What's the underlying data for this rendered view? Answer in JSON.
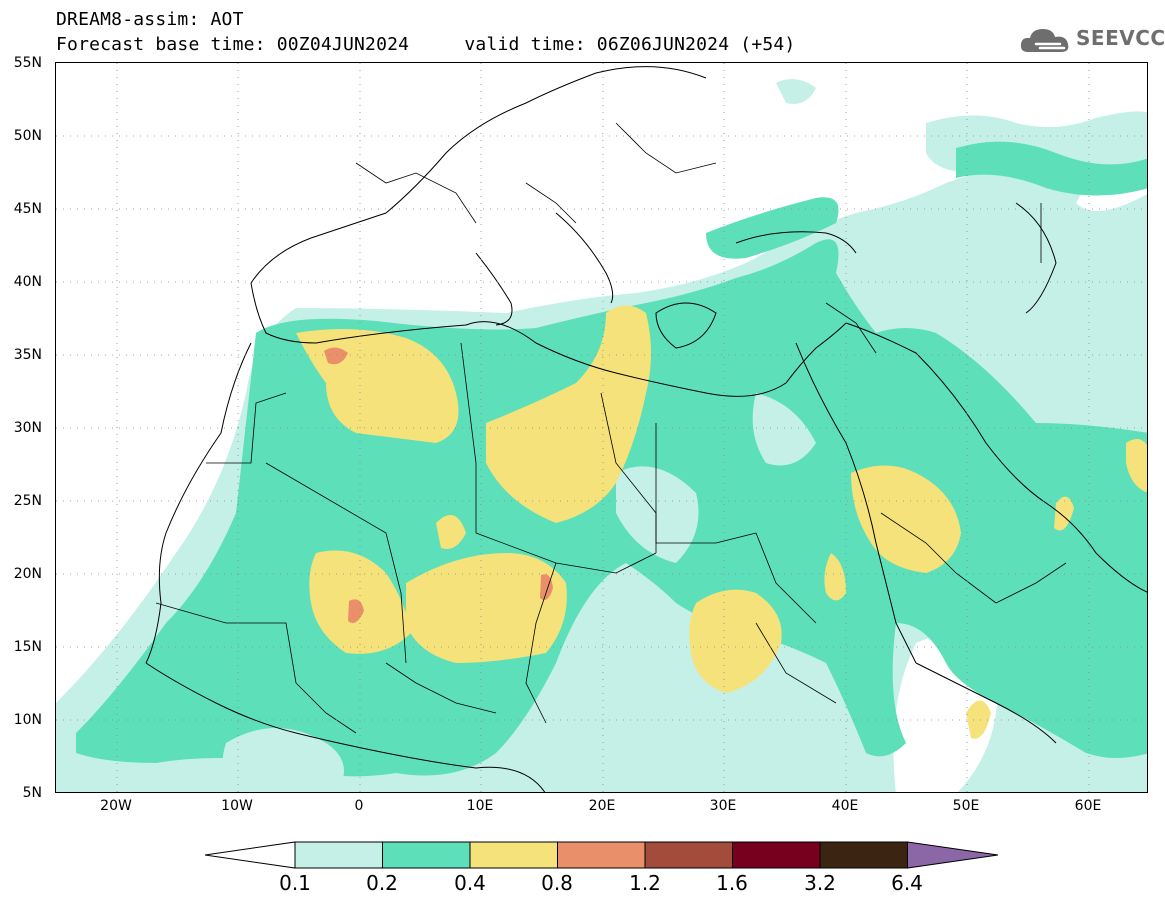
{
  "title": {
    "line1": "DREAM8-assim: AOT",
    "line2": "Forecast base time: 00Z04JUN2024     valid time: 06Z06JUN2024 (+54)"
  },
  "logo": {
    "text": "SEEVCCC",
    "icon": "cloud-icon",
    "color": "#6e6e6e"
  },
  "map": {
    "projection": "lat-lon",
    "lon_range": [
      -25,
      65
    ],
    "lat_range": [
      5,
      55
    ],
    "y_ticks": [
      "55N",
      "50N",
      "45N",
      "40N",
      "35N",
      "30N",
      "25N",
      "20N",
      "15N",
      "10N",
      "5N"
    ],
    "x_ticks": [
      "20W",
      "10W",
      "0",
      "10E",
      "20E",
      "30E",
      "40E",
      "50E",
      "60E"
    ]
  },
  "legend": {
    "thresholds": [
      "0.1",
      "0.2",
      "0.4",
      "0.8",
      "1.2",
      "1.6",
      "3.2",
      "6.4"
    ],
    "colors": [
      "#ffffff",
      "#c4f0e8",
      "#5ddfb9",
      "#f5e27a",
      "#e9906a",
      "#a34c3c",
      "#76001e",
      "#3b2512",
      "#8b67a8"
    ]
  }
}
